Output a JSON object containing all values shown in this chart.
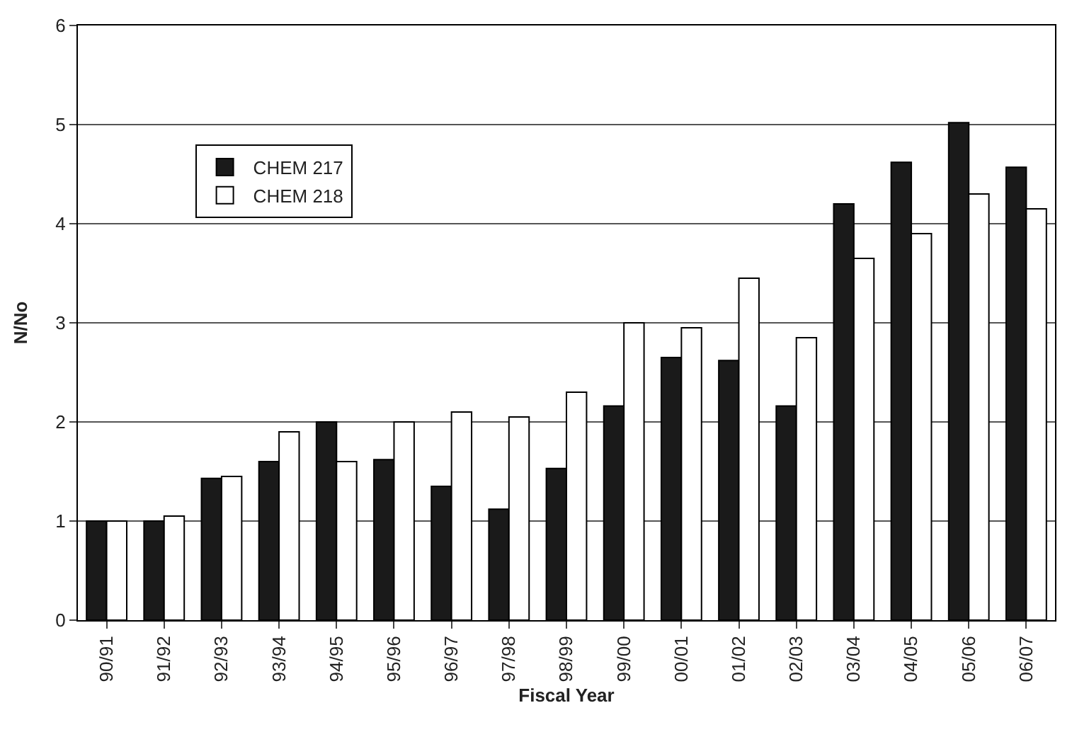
{
  "chart_data": {
    "type": "bar",
    "xlabel": "Fiscal Year",
    "ylabel": "N/No",
    "categories": [
      "90/91",
      "91/92",
      "92/93",
      "93/94",
      "94/95",
      "95/96",
      "96/97",
      "97/98",
      "98/99",
      "99/00",
      "00/01",
      "01/02",
      "02/03",
      "03/04",
      "04/05",
      "05/06",
      "06/07"
    ],
    "series": [
      {
        "name": "CHEM 217",
        "color": "#1a1a1a",
        "values": [
          1.0,
          1.0,
          1.43,
          1.6,
          2.0,
          1.62,
          1.35,
          1.12,
          1.53,
          2.16,
          2.65,
          2.62,
          2.16,
          4.2,
          4.62,
          5.02,
          4.57
        ]
      },
      {
        "name": "CHEM 218",
        "color": "#ffffff",
        "values": [
          1.0,
          1.05,
          1.45,
          1.9,
          1.6,
          2.0,
          2.1,
          2.05,
          2.3,
          3.0,
          2.95,
          3.45,
          2.85,
          3.65,
          3.9,
          4.3,
          4.15
        ]
      }
    ],
    "ylim": [
      0,
      6
    ],
    "yticks": [
      0,
      1,
      2,
      3,
      4,
      5,
      6
    ],
    "grid": "y",
    "legend": "top left"
  }
}
